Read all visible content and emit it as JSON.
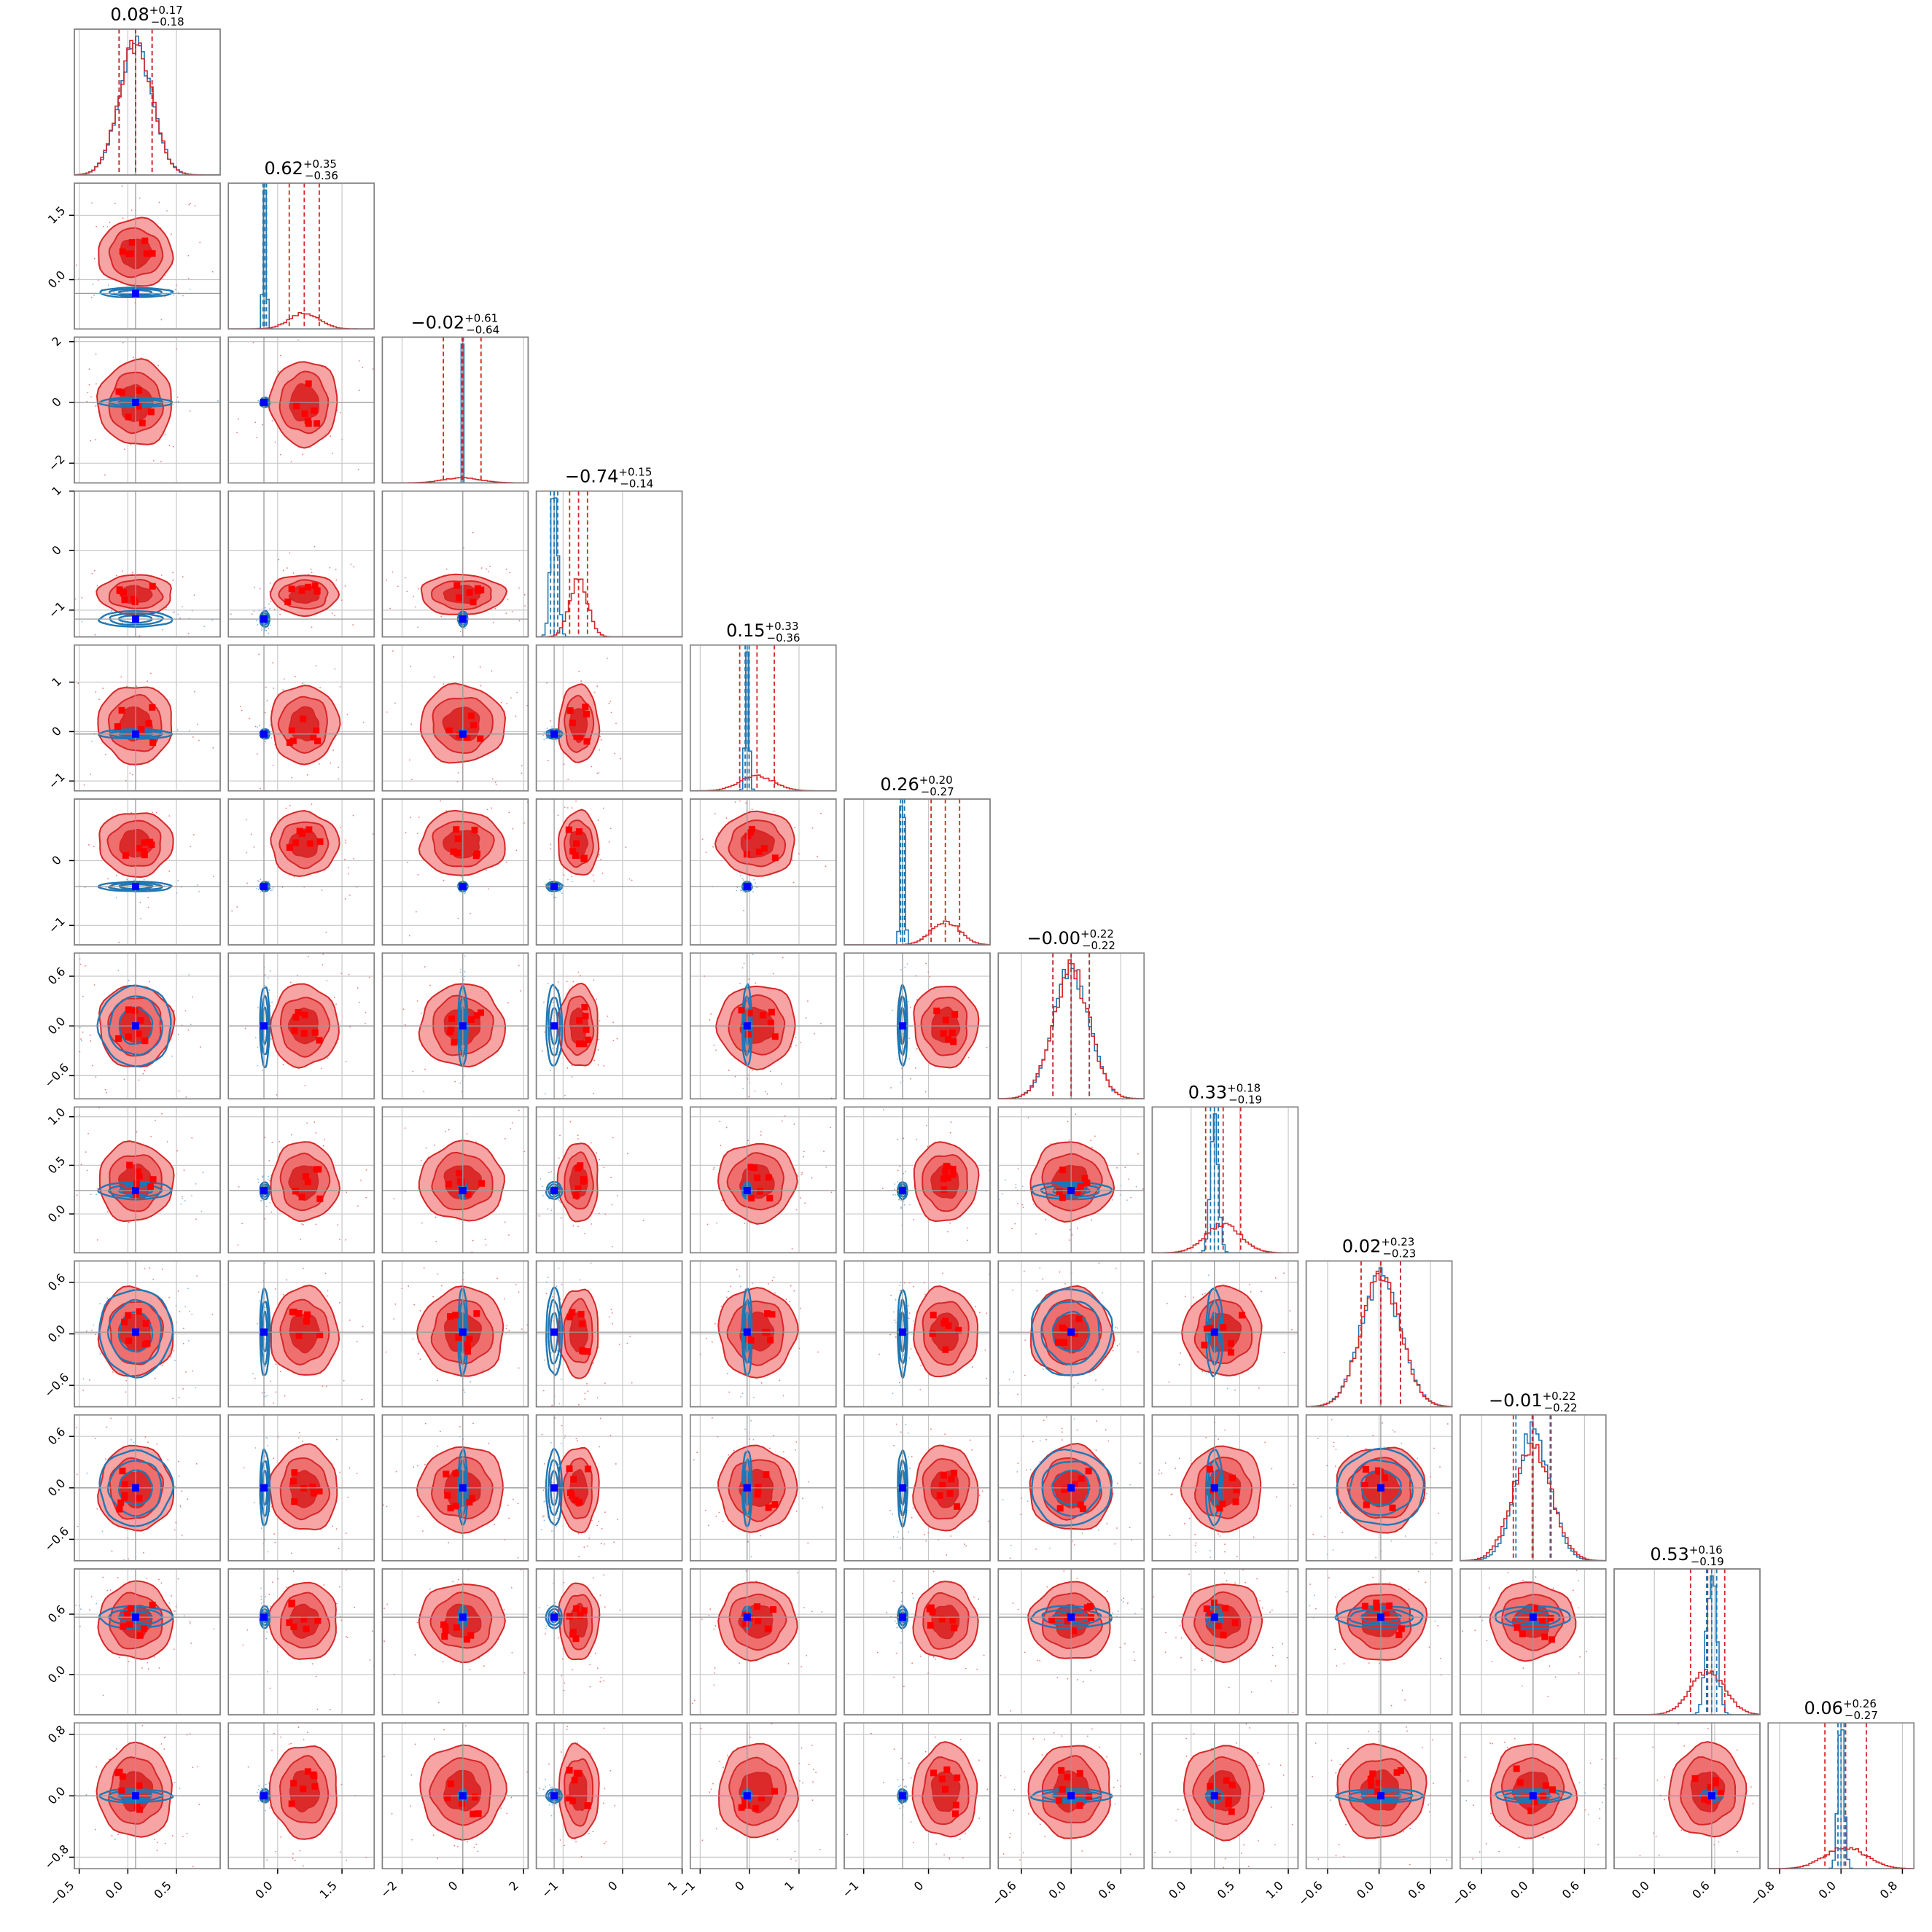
{
  "colors": {
    "model_a": "#d62728",
    "model_b": "#1f77b4",
    "truth": "#0000ff",
    "markers": "#ff0000",
    "grid": "#c8c8c8"
  },
  "chart_data": {
    "type": "corner",
    "n_params": 12,
    "grid": true,
    "series": [
      {
        "color": "#d62728",
        "style": "filled contours + step histograms"
      },
      {
        "color": "#1f77b4",
        "style": "line contours + step histograms"
      }
    ],
    "params": [
      {
        "center": 0.08,
        "ref": 0.08,
        "title": {
          "median": "0.08",
          "plus": "+0.17",
          "minus": "−0.18"
        },
        "range": [
          -0.55,
          0.95
        ],
        "ticks": [
          -0.5,
          0.0,
          0.5
        ],
        "tick_labels": [
          "−0.5",
          "0.0",
          "0.5"
        ],
        "a_mean": 0.08,
        "a_sd": 0.17,
        "b_mean": 0.08,
        "b_sd": 0.17
      },
      {
        "center": -0.3,
        "ref": -0.32,
        "title": {
          "median": "0.62",
          "plus": "+0.35",
          "minus": "−0.36"
        },
        "range": [
          -1.15,
          2.25
        ],
        "ticks": [
          0.0,
          1.5
        ],
        "tick_labels": [
          "0.0",
          "1.5"
        ],
        "a_mean": 0.62,
        "a_sd": 0.35,
        "b_mean": -0.3,
        "b_sd": 0.04
      },
      {
        "center": -0.02,
        "ref": 0.0,
        "title": {
          "median": "−0.02",
          "plus": "+0.61",
          "minus": "−0.64"
        },
        "range": [
          -2.65,
          2.15
        ],
        "ticks": [
          -2,
          0,
          2
        ],
        "tick_labels": [
          "−2",
          "0",
          "2"
        ],
        "a_mean": -0.02,
        "a_sd": 0.62,
        "b_mean": 0.0,
        "b_sd": 0.02
      },
      {
        "center": -1.1,
        "ref": -1.15,
        "title": {
          "median": "−0.74",
          "plus": "+0.15",
          "minus": "−0.14"
        },
        "range": [
          -1.45,
          1.0
        ],
        "ticks": [
          -1,
          0,
          1
        ],
        "tick_labels": [
          "−1",
          "0",
          "1"
        ],
        "a_mean": -0.74,
        "a_sd": 0.15,
        "b_mean": -1.15,
        "b_sd": 0.06
      },
      {
        "center": -0.05,
        "ref": -0.05,
        "title": {
          "median": "0.15",
          "plus": "+0.33",
          "minus": "−0.36"
        },
        "range": [
          -1.2,
          1.75
        ],
        "ticks": [
          -1,
          0,
          1
        ],
        "tick_labels": [
          "−1",
          "0",
          "1"
        ],
        "a_mean": 0.15,
        "a_sd": 0.35,
        "b_mean": -0.05,
        "b_sd": 0.04
      },
      {
        "center": -0.4,
        "ref": -0.4,
        "title": {
          "median": "0.26",
          "plus": "+0.20",
          "minus": "−0.27"
        },
        "range": [
          -1.3,
          0.95
        ],
        "ticks": [
          -1,
          0
        ],
        "tick_labels": [
          "−1",
          "0"
        ],
        "a_mean": 0.26,
        "a_sd": 0.22,
        "b_mean": -0.4,
        "b_sd": 0.03
      },
      {
        "center": 0.0,
        "ref": 0.0,
        "title": {
          "median": "−0.00",
          "plus": "+0.22",
          "minus": "−0.22"
        },
        "range": [
          -0.88,
          0.88
        ],
        "ticks": [
          -0.6,
          0.0,
          0.6
        ],
        "tick_labels": [
          "−0.6",
          "0.0",
          "0.6"
        ],
        "a_mean": 0.0,
        "a_sd": 0.22,
        "b_mean": 0.0,
        "b_sd": 0.22
      },
      {
        "center": 0.24,
        "ref": 0.24,
        "title": {
          "median": "0.33",
          "plus": "+0.18",
          "minus": "−0.19"
        },
        "range": [
          -0.4,
          1.1
        ],
        "ticks": [
          0.0,
          0.5,
          1.0
        ],
        "tick_labels": [
          "0.0",
          "0.5",
          "1.0"
        ],
        "a_mean": 0.33,
        "a_sd": 0.18,
        "b_mean": 0.24,
        "b_sd": 0.04
      },
      {
        "center": 0.02,
        "ref": 0.02,
        "title": {
          "median": "0.02",
          "plus": "+0.23",
          "minus": "−0.23"
        },
        "range": [
          -0.85,
          0.85
        ],
        "ticks": [
          -0.6,
          0.0,
          0.6
        ],
        "tick_labels": [
          "−0.6",
          "0.0",
          "0.6"
        ],
        "a_mean": 0.02,
        "a_sd": 0.23,
        "b_mean": 0.02,
        "b_sd": 0.23
      },
      {
        "center": -0.01,
        "ref": 0.0,
        "title": {
          "median": "−0.01",
          "plus": "+0.22",
          "minus": "−0.22"
        },
        "range": [
          -0.85,
          0.85
        ],
        "ticks": [
          -0.6,
          0.0,
          0.6
        ],
        "tick_labels": [
          "−0.6",
          "0.0",
          "0.6"
        ],
        "a_mean": -0.01,
        "a_sd": 0.22,
        "b_mean": 0.0,
        "b_sd": 0.2
      },
      {
        "center": 0.57,
        "ref": 0.57,
        "title": {
          "median": "0.53",
          "plus": "+0.16",
          "minus": "−0.19"
        },
        "range": [
          -0.4,
          1.05
        ],
        "ticks": [
          0.0,
          0.6
        ],
        "tick_labels": [
          "0.0",
          "0.6"
        ],
        "a_mean": 0.53,
        "a_sd": 0.17,
        "b_mean": 0.57,
        "b_sd": 0.05
      },
      {
        "center": 0.0,
        "ref": 0.0,
        "title": {
          "median": "0.06",
          "plus": "+0.26",
          "minus": "−0.27"
        },
        "range": [
          -0.95,
          0.95
        ],
        "ticks": [
          -0.8,
          0.0,
          0.8
        ],
        "tick_labels": [
          "−0.8",
          "0.0",
          "0.8"
        ],
        "a_mean": 0.06,
        "a_sd": 0.27,
        "b_mean": 0.0,
        "b_sd": 0.04
      }
    ]
  }
}
